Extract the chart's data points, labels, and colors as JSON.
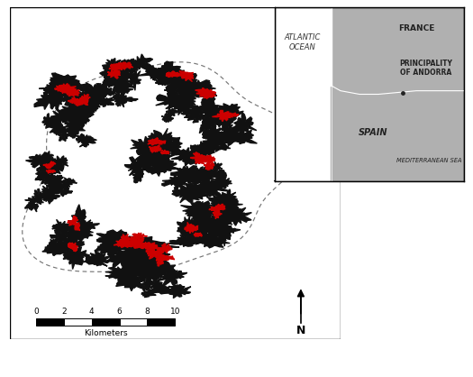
{
  "bg_color": "#ffffff",
  "map_black": "#111111",
  "map_red": "#cc0000",
  "outline_color": "#888888",
  "inset_gray": "#b0b0b0",
  "inset_white": "#ffffff",
  "inset_border": "#333333",
  "scalebar_ticks": [
    "0",
    "2",
    "4",
    "6",
    "8",
    "10"
  ],
  "scalebar_label": "Kilometers",
  "north_label": "N",
  "france_label": "FRANCE",
  "spain_label": "SPAIN",
  "andorra_label": "PRINCIPALITY\nOF ANDORRA",
  "atlantic_label": "ATLANTIC\nOCEAN",
  "med_label": "MEDITERRANEAN SEA",
  "dpi": 100,
  "figw": 5.25,
  "figh": 4.18
}
